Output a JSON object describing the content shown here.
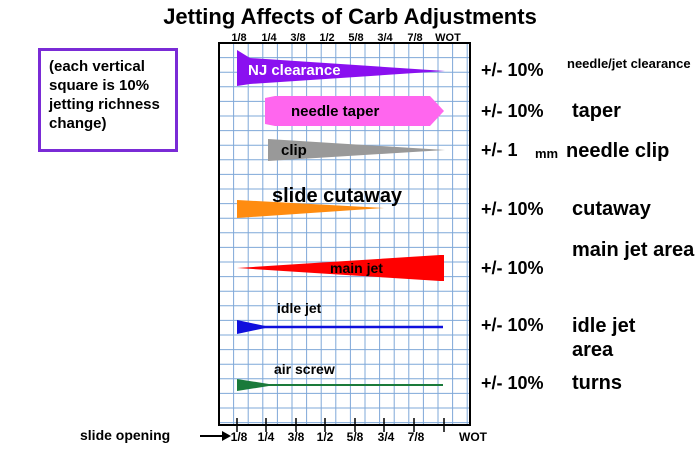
{
  "title": "Jetting Affects of Carb Adjustments",
  "note": "(each vertical square is 10% jetting richness change)",
  "top_ticks": [
    "1/8",
    "1/4",
    "3/8",
    "1/2",
    "5/8",
    "3/4",
    "7/8",
    "WOT"
  ],
  "bottom_ticks": [
    "1/8",
    "1/4",
    "3/8",
    "1/2",
    "5/8",
    "3/4",
    "7/8",
    "WOT"
  ],
  "slide_opening_label": "slide opening",
  "colors": {
    "grid": "#7fa8d8",
    "note_border": "#7a2bd6",
    "nj_clearance": "#8a10f0",
    "needle_taper": "#ff66ee",
    "clip": "#999999",
    "slide_cutaway": "#ff8c10",
    "main_jet": "#ff0000",
    "idle_jet": "#1010dd",
    "air_screw": "#1a7a3a"
  },
  "bands": [
    {
      "id": "nj_clearance",
      "label": "NJ clearance",
      "effect_value": "+/- 10%",
      "effect_label": "needle/jet clearance"
    },
    {
      "id": "needle_taper",
      "label": "needle taper",
      "effect_value": "+/- 10%",
      "effect_label": "taper"
    },
    {
      "id": "clip",
      "label": "clip",
      "effect_value": "+/- 1",
      "effect_unit": "mm",
      "effect_label": "needle clip"
    },
    {
      "id": "slide_cutaway",
      "label": "slide cutaway",
      "effect_value": "+/- 10%",
      "effect_label": "cutaway"
    },
    {
      "id": "main_jet",
      "label": "main jet",
      "effect_value": "+/- 10%",
      "effect_label": "main jet area"
    },
    {
      "id": "idle_jet",
      "label": "idle jet",
      "effect_value": "+/- 10%",
      "effect_label": "idle jet area"
    },
    {
      "id": "air_screw",
      "label": "air screw",
      "effect_value": "+/- 10%",
      "effect_label": "turns"
    }
  ]
}
